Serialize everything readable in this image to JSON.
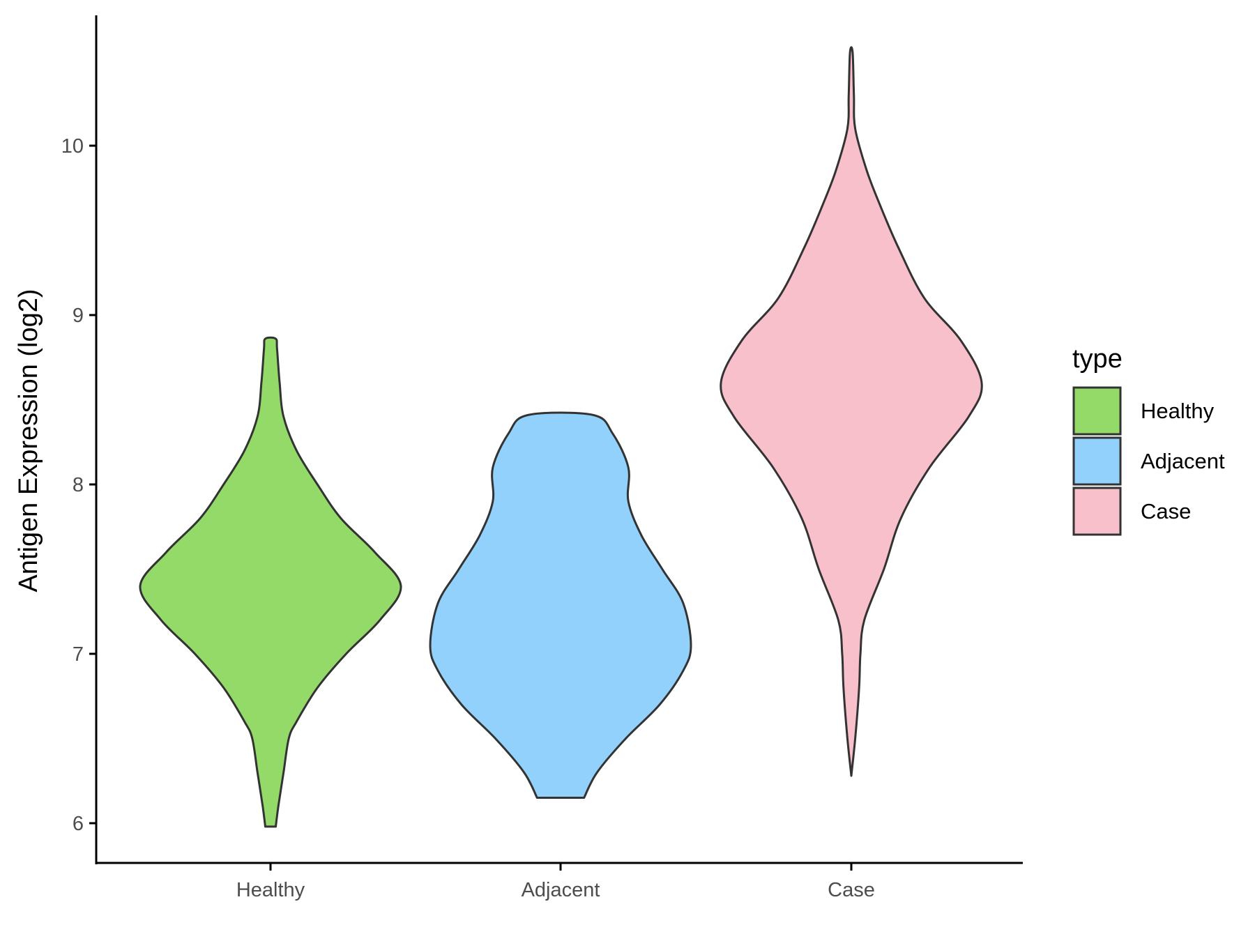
{
  "chart_data": {
    "type": "violin",
    "ylabel": "Antigen Expression (log2)",
    "xlabel": "",
    "ylim": [
      5.75,
      10.75
    ],
    "yticks": [
      6,
      7,
      8,
      9,
      10
    ],
    "categories": [
      "Healthy",
      "Adjacent",
      "Case"
    ],
    "legend": {
      "title": "type",
      "position": "right",
      "entries": [
        "Healthy",
        "Adjacent",
        "Case"
      ]
    },
    "grid": false,
    "series": [
      {
        "name": "Healthy",
        "color": "#93da69",
        "min": 5.98,
        "max": 8.86,
        "density_profile": [
          [
            5.98,
            0.04
          ],
          [
            6.1,
            0.06
          ],
          [
            6.3,
            0.1
          ],
          [
            6.5,
            0.14
          ],
          [
            6.6,
            0.2
          ],
          [
            6.8,
            0.36
          ],
          [
            7.0,
            0.58
          ],
          [
            7.2,
            0.84
          ],
          [
            7.4,
            1.0
          ],
          [
            7.6,
            0.8
          ],
          [
            7.8,
            0.54
          ],
          [
            8.0,
            0.36
          ],
          [
            8.2,
            0.2
          ],
          [
            8.4,
            0.1
          ],
          [
            8.6,
            0.07
          ],
          [
            8.8,
            0.05
          ],
          [
            8.86,
            0.04
          ]
        ]
      },
      {
        "name": "Adjacent",
        "color": "#92d1fc",
        "min": 6.15,
        "max": 8.41,
        "density_profile": [
          [
            6.15,
            0.18
          ],
          [
            6.3,
            0.28
          ],
          [
            6.5,
            0.5
          ],
          [
            6.7,
            0.76
          ],
          [
            6.9,
            0.94
          ],
          [
            7.05,
            1.0
          ],
          [
            7.3,
            0.94
          ],
          [
            7.5,
            0.78
          ],
          [
            7.7,
            0.62
          ],
          [
            7.9,
            0.52
          ],
          [
            8.1,
            0.52
          ],
          [
            8.3,
            0.4
          ],
          [
            8.41,
            0.25
          ]
        ]
      },
      {
        "name": "Case",
        "color": "#f7c0cb",
        "min": 6.28,
        "max": 10.55,
        "density_profile": [
          [
            6.28,
            0.0
          ],
          [
            6.5,
            0.03
          ],
          [
            6.8,
            0.06
          ],
          [
            7.0,
            0.07
          ],
          [
            7.2,
            0.1
          ],
          [
            7.5,
            0.25
          ],
          [
            7.8,
            0.38
          ],
          [
            8.1,
            0.6
          ],
          [
            8.4,
            0.9
          ],
          [
            8.6,
            1.0
          ],
          [
            8.85,
            0.84
          ],
          [
            9.1,
            0.56
          ],
          [
            9.4,
            0.36
          ],
          [
            9.65,
            0.22
          ],
          [
            9.85,
            0.12
          ],
          [
            10.1,
            0.03
          ],
          [
            10.3,
            0.02
          ],
          [
            10.55,
            0.01
          ]
        ]
      }
    ]
  }
}
